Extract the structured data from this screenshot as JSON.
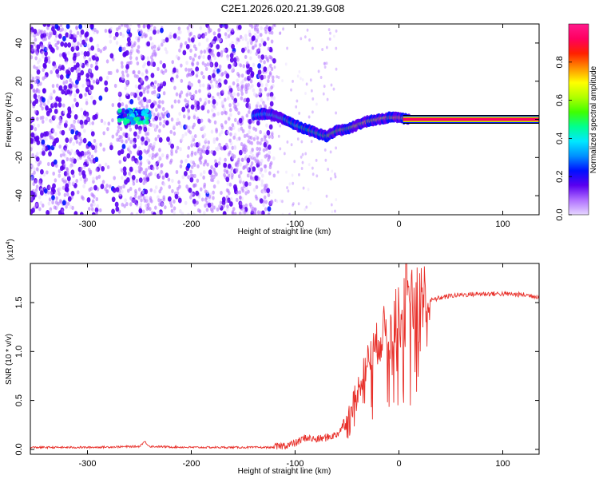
{
  "title": "C2E1.2026.020.21.39.G08",
  "chart_data": [
    {
      "type": "heatmap",
      "xlabel": "Height of straight line (km)",
      "ylabel": "Frequency (Hz)",
      "xlim": [
        -355,
        135
      ],
      "ylim": [
        -50,
        50
      ],
      "xticks": [
        -300,
        -200,
        -100,
        0,
        100
      ],
      "yticks": [
        -40,
        -20,
        0,
        20,
        40
      ],
      "grid": false,
      "colorbar": {
        "label": "Normalized spectral amplitude",
        "range": [
          0,
          1
        ],
        "ticks": [
          "0.0",
          "0.2",
          "0.4",
          "0.6",
          "0.8"
        ],
        "colors": [
          "#e6d6ff",
          "#b070ff",
          "#5a00f0",
          "#0010ff",
          "#0090ff",
          "#00e8ff",
          "#00ff90",
          "#40ff00",
          "#b0ff00",
          "#ffff00",
          "#ff9000",
          "#ff2000",
          "#ff0060",
          "#ff1a8c"
        ]
      },
      "ridge": {
        "x": [
          -140,
          -130,
          -120,
          -110,
          -100,
          -90,
          -80,
          -70,
          -60,
          -50,
          -40,
          -30,
          -20,
          -10,
          0,
          10,
          135
        ],
        "y": [
          2,
          3,
          2,
          0,
          -3,
          -5,
          -7,
          -9,
          -6,
          -5,
          -3,
          -1,
          0,
          1,
          1,
          0,
          0
        ]
      },
      "scatter_cluster": {
        "x": [
          -270,
          -240
        ],
        "y": [
          -2,
          5
        ]
      }
    },
    {
      "type": "line",
      "xlabel": "Height of straight line (km)",
      "ylabel": "SNR (10 * v/v)",
      "y_multiplier_label": "(x10",
      "y_multiplier_exp": "4",
      "y_multiplier_close": ")",
      "xlim": [
        -355,
        135
      ],
      "ylim": [
        -0.05,
        1.9
      ],
      "xticks": [
        -300,
        -200,
        -100,
        0,
        100
      ],
      "yticks": [
        "0.0",
        "0.5",
        "1.0",
        "1.5"
      ],
      "grid": false,
      "series": [
        {
          "color": "#e8302a",
          "x": [
            -355,
            -300,
            -250,
            -245,
            -240,
            -200,
            -150,
            -120,
            -100,
            -90,
            -80,
            -70,
            -60,
            -50,
            -45,
            -40,
            -35,
            -30,
            -25,
            -20,
            -15,
            -10,
            -5,
            0,
            5,
            10,
            15,
            20,
            25,
            30,
            40,
            50,
            60,
            80,
            100,
            120,
            135
          ],
          "y": [
            0.02,
            0.02,
            0.03,
            0.08,
            0.03,
            0.02,
            0.02,
            0.02,
            0.06,
            0.12,
            0.1,
            0.12,
            0.15,
            0.3,
            0.45,
            0.6,
            0.75,
            0.9,
            1.0,
            1.1,
            1.2,
            1.25,
            1.3,
            1.35,
            1.4,
            1.43,
            1.46,
            1.48,
            1.5,
            1.52,
            1.55,
            1.57,
            1.58,
            1.59,
            1.59,
            1.58,
            1.56
          ]
        }
      ]
    }
  ]
}
